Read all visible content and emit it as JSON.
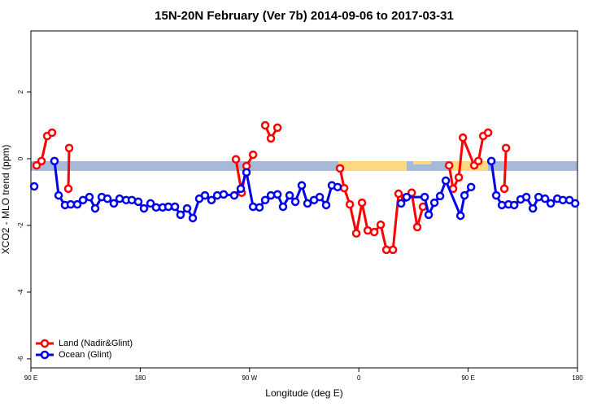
{
  "chart_data": {
    "type": "line",
    "title": "15N-20N February (Ver 7b)   2014-09-06 to 2017-03-31",
    "x_label": "Longitude (deg E)",
    "y_label": "XCO2 - MLO trend (ppm)",
    "xlim": [
      90,
      540
    ],
    "ylim": [
      -6.27,
      3.83
    ],
    "xticks": [
      {
        "value": 90,
        "label": "90 E"
      },
      180,
      {
        "value": 270,
        "label": "90 W"
      },
      {
        "value": 360,
        "label": "0"
      },
      {
        "value": 450,
        "label": "90 E"
      },
      {
        "value": 540,
        "label": "180"
      }
    ],
    "yticks": [
      -6,
      -4,
      -2,
      0,
      2
    ],
    "grid": false,
    "legend": "bottom-left",
    "series": [
      {
        "name": "Land (Nadir&Glint)",
        "color": "#ff0000",
        "x": [
          94.7,
          98.7,
          103.4,
          107.4,
          null,
          120.8,
          121.5,
          null,
          258.8,
          263.5,
          267.5,
          272.9,
          null,
          282.9,
          287.6,
          293.0,
          null,
          344.5,
          347.9,
          352.6,
          357.9,
          362.6,
          367.3,
          372.7,
          378.0,
          382.7,
          388.1,
          392.7,
          398.1,
          403.5,
          408.1,
          412.8,
          null,
          434.3,
          437.6,
          442.3,
          445.7,
          455.0,
          458.4,
          462.4,
          466.4,
          null,
          479.8,
          481.2
        ],
        "values": [
          -0.2,
          -0.07,
          0.68,
          0.78,
          null,
          -0.9,
          0.32,
          null,
          -0.02,
          -1.02,
          -0.22,
          0.12,
          null,
          1.0,
          0.61,
          0.93,
          null,
          -0.29,
          -0.88,
          -1.37,
          -2.24,
          -1.32,
          -2.15,
          -2.2,
          -1.98,
          -2.73,
          -2.73,
          -1.05,
          -1.17,
          -1.02,
          -2.05,
          -1.44,
          null,
          -0.2,
          -0.9,
          -0.56,
          0.63,
          -0.2,
          -0.07,
          0.68,
          0.78,
          null,
          -0.9,
          0.32
        ]
      },
      {
        "name": "Ocean (Glint)",
        "color": "#0000ee",
        "x": [
          92.7,
          null,
          109.4,
          112.8,
          118.1,
          122.8,
          128.2,
          132.9,
          138.2,
          142.9,
          148.3,
          153.0,
          158.3,
          163.0,
          168.4,
          173.1,
          178.4,
          183.1,
          188.5,
          193.1,
          198.5,
          203.2,
          208.6,
          213.2,
          218.6,
          223.3,
          228.6,
          233.3,
          238.7,
          243.4,
          248.7,
          257.4,
          262.8,
          267.5,
          272.9,
          278.2,
          282.9,
          287.6,
          293.0,
          297.6,
          303.0,
          307.7,
          313.0,
          317.7,
          323.1,
          327.8,
          333.1,
          337.8,
          342.5,
          null,
          394.8,
          399.4,
          414.2,
          417.5,
          422.2,
          426.9,
          431.6,
          443.7,
          447.0,
          452.4,
          null,
          469.1,
          473.1,
          477.8,
          483.2,
          487.9,
          493.2,
          497.9,
          503.3,
          508.0,
          513.3,
          518.0,
          523.4,
          528.0,
          533.4,
          538.1
        ],
        "values": [
          -0.83,
          null,
          -0.07,
          -1.1,
          -1.39,
          -1.37,
          -1.37,
          -1.24,
          -1.15,
          -1.49,
          -1.15,
          -1.2,
          -1.34,
          -1.2,
          -1.24,
          -1.24,
          -1.29,
          -1.49,
          -1.34,
          -1.46,
          -1.46,
          -1.44,
          -1.44,
          -1.68,
          -1.49,
          -1.78,
          -1.2,
          -1.1,
          -1.24,
          -1.1,
          -1.07,
          -1.1,
          -0.9,
          -0.41,
          -1.44,
          -1.46,
          -1.24,
          -1.1,
          -1.07,
          -1.44,
          -1.1,
          -1.29,
          -0.8,
          -1.34,
          -1.24,
          -1.15,
          -1.39,
          -0.8,
          -0.85,
          null,
          -1.34,
          -1.15,
          -1.15,
          -1.68,
          -1.32,
          -1.12,
          -0.66,
          -1.71,
          -1.1,
          -0.85,
          null,
          -0.07,
          -1.1,
          -1.39,
          -1.37,
          -1.39,
          -1.22,
          -1.15,
          -1.49,
          -1.15,
          -1.2,
          -1.34,
          -1.2,
          -1.24,
          -1.24,
          -1.34
        ]
      }
    ]
  }
}
